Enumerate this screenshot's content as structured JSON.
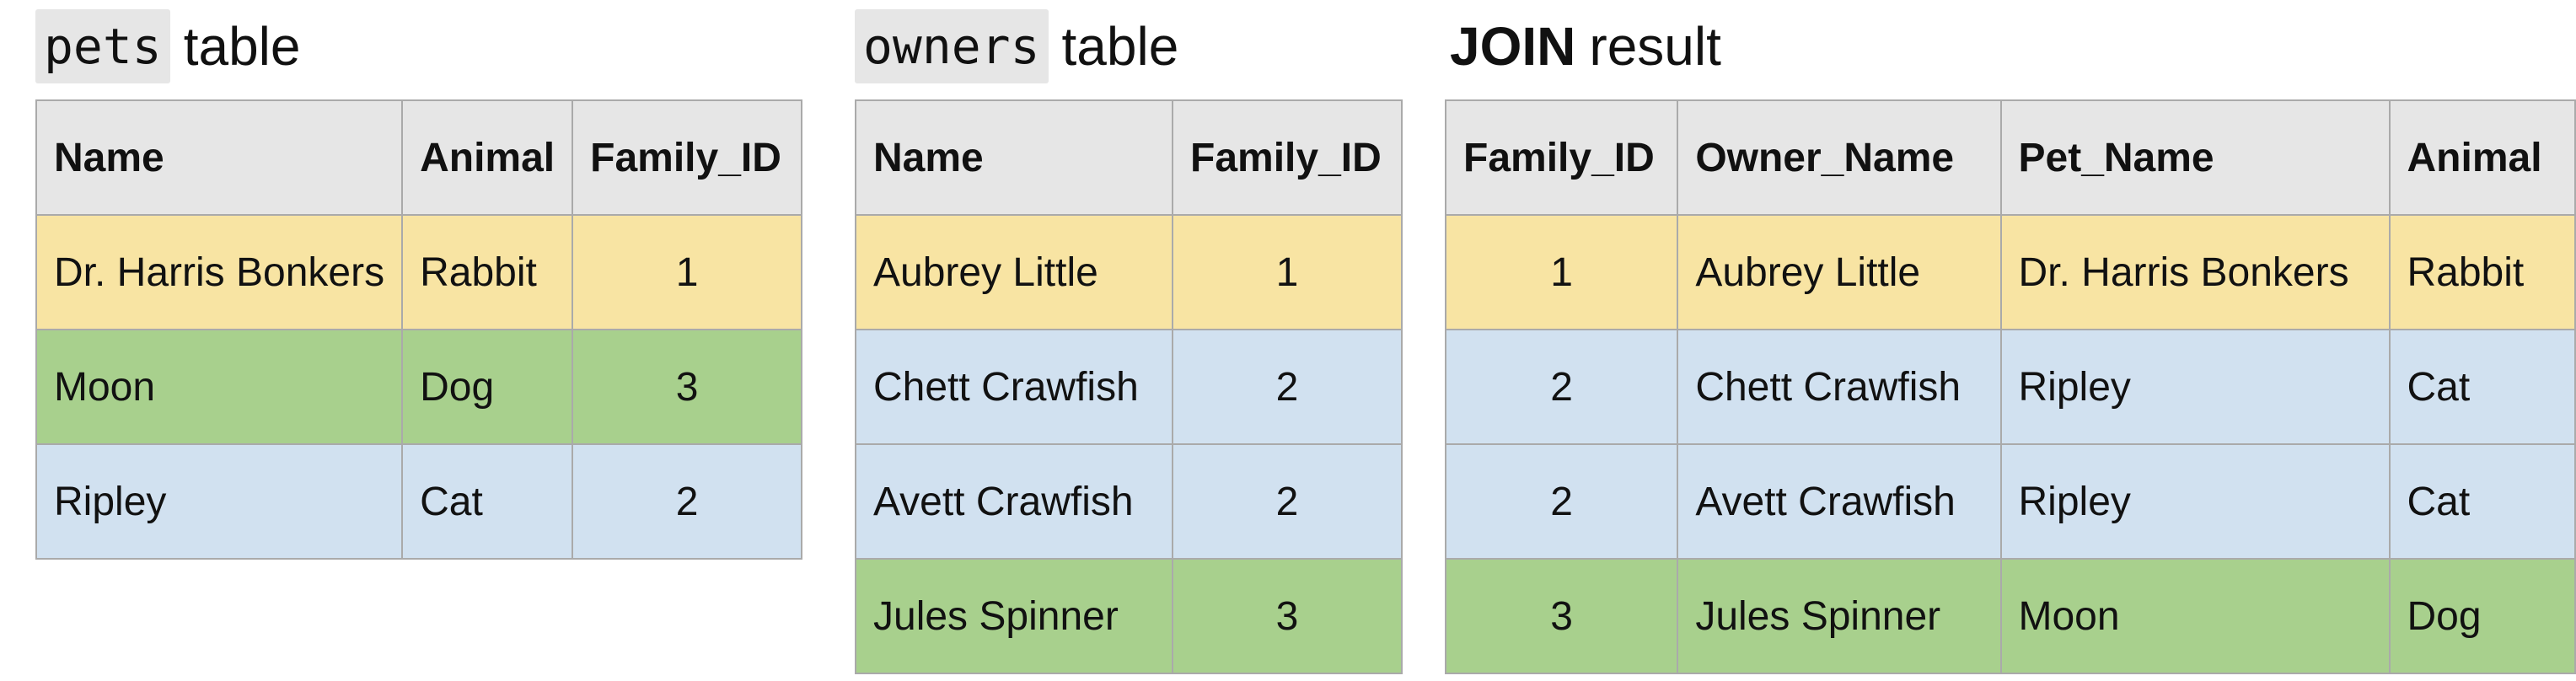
{
  "colors": {
    "header_bg": "#e6e6e6",
    "yellow": "#f8e4a3",
    "green": "#a8d08d",
    "blue": "#d1e1f0",
    "border": "#aaaaaa"
  },
  "pets": {
    "title_code": "pets",
    "title_word": "table",
    "headers": [
      "Name",
      "Animal",
      "Family_ID"
    ],
    "rows": [
      {
        "cells": [
          "Dr. Harris Bonkers",
          "Rabbit",
          "1"
        ],
        "color": "yellow"
      },
      {
        "cells": [
          "Moon",
          "Dog",
          "3"
        ],
        "color": "green"
      },
      {
        "cells": [
          "Ripley",
          "Cat",
          "2"
        ],
        "color": "blue"
      }
    ]
  },
  "owners": {
    "title_code": "owners",
    "title_word": "table",
    "headers": [
      "Name",
      "Family_ID"
    ],
    "rows": [
      {
        "cells": [
          "Aubrey Little",
          "1"
        ],
        "color": "yellow"
      },
      {
        "cells": [
          "Chett Crawfish",
          "2"
        ],
        "color": "blue"
      },
      {
        "cells": [
          "Avett Crawfish",
          "2"
        ],
        "color": "blue"
      },
      {
        "cells": [
          "Jules Spinner",
          "3"
        ],
        "color": "green"
      }
    ]
  },
  "join": {
    "title_bold": "JOIN",
    "title_word": "result",
    "headers": [
      "Family_ID",
      "Owner_Name",
      "Pet_Name",
      "Animal"
    ],
    "rows": [
      {
        "cells": [
          "1",
          "Aubrey Little",
          "Dr. Harris Bonkers",
          "Rabbit"
        ],
        "color": "yellow"
      },
      {
        "cells": [
          "2",
          "Chett Crawfish",
          "Ripley",
          "Cat"
        ],
        "color": "blue"
      },
      {
        "cells": [
          "2",
          "Avett Crawfish",
          "Ripley",
          "Cat"
        ],
        "color": "blue"
      },
      {
        "cells": [
          "3",
          "Jules Spinner",
          "Moon",
          "Dog"
        ],
        "color": "green"
      }
    ]
  }
}
